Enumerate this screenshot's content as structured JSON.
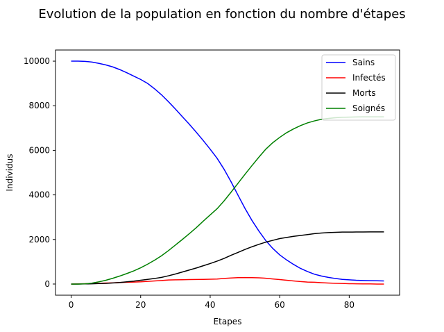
{
  "chart_data": {
    "type": "line",
    "title": "Evolution de la population en fonction du nombre d'étapes",
    "xlabel": "Etapes",
    "ylabel": "Individus",
    "xlim": [
      -4.5,
      94.5
    ],
    "ylim": [
      -500,
      10500
    ],
    "xticks": [
      0,
      20,
      40,
      60,
      80
    ],
    "yticks": [
      0,
      2000,
      4000,
      6000,
      8000,
      10000
    ],
    "grid": false,
    "legend_position": "top-right",
    "x": [
      0,
      2,
      4,
      6,
      8,
      10,
      12,
      14,
      16,
      18,
      20,
      22,
      24,
      26,
      28,
      30,
      32,
      34,
      36,
      38,
      40,
      42,
      44,
      46,
      48,
      50,
      52,
      54,
      56,
      58,
      60,
      62,
      64,
      66,
      68,
      70,
      72,
      74,
      76,
      78,
      80,
      82,
      84,
      86,
      88,
      90
    ],
    "series": [
      {
        "name": "Sains",
        "color": "#0000ff",
        "values": [
          10000,
          10000,
          9990,
          9960,
          9900,
          9830,
          9740,
          9620,
          9480,
          9330,
          9180,
          9000,
          8760,
          8490,
          8180,
          7850,
          7510,
          7170,
          6810,
          6440,
          6050,
          5640,
          5150,
          4590,
          3990,
          3400,
          2860,
          2380,
          1950,
          1600,
          1310,
          1080,
          880,
          700,
          560,
          440,
          360,
          300,
          250,
          210,
          190,
          170,
          160,
          150,
          145,
          140
        ]
      },
      {
        "name": "Infectés",
        "color": "#ff0000",
        "values": [
          0,
          5,
          15,
          25,
          35,
          45,
          55,
          70,
          80,
          90,
          100,
          120,
          140,
          160,
          180,
          190,
          195,
          200,
          205,
          210,
          215,
          225,
          250,
          270,
          285,
          290,
          285,
          280,
          260,
          230,
          200,
          170,
          140,
          110,
          90,
          80,
          60,
          45,
          35,
          25,
          15,
          10,
          5,
          5,
          0,
          0
        ]
      },
      {
        "name": "Morts",
        "color": "#000000",
        "values": [
          0,
          0,
          5,
          10,
          20,
          30,
          50,
          70,
          100,
          130,
          170,
          210,
          250,
          300,
          370,
          450,
          540,
          630,
          720,
          820,
          920,
          1030,
          1150,
          1290,
          1420,
          1550,
          1670,
          1780,
          1880,
          1960,
          2040,
          2090,
          2140,
          2180,
          2220,
          2260,
          2290,
          2310,
          2320,
          2330,
          2330,
          2335,
          2335,
          2340,
          2340,
          2340
        ]
      },
      {
        "name": "Soignés",
        "color": "#008000",
        "values": [
          0,
          0,
          10,
          40,
          100,
          170,
          260,
          360,
          470,
          590,
          730,
          890,
          1070,
          1270,
          1500,
          1750,
          2000,
          2260,
          2530,
          2820,
          3100,
          3380,
          3730,
          4120,
          4520,
          4920,
          5310,
          5690,
          6050,
          6340,
          6580,
          6790,
          6960,
          7110,
          7230,
          7320,
          7390,
          7430,
          7460,
          7480,
          7490,
          7495,
          7500,
          7500,
          7500,
          7500
        ]
      }
    ]
  }
}
